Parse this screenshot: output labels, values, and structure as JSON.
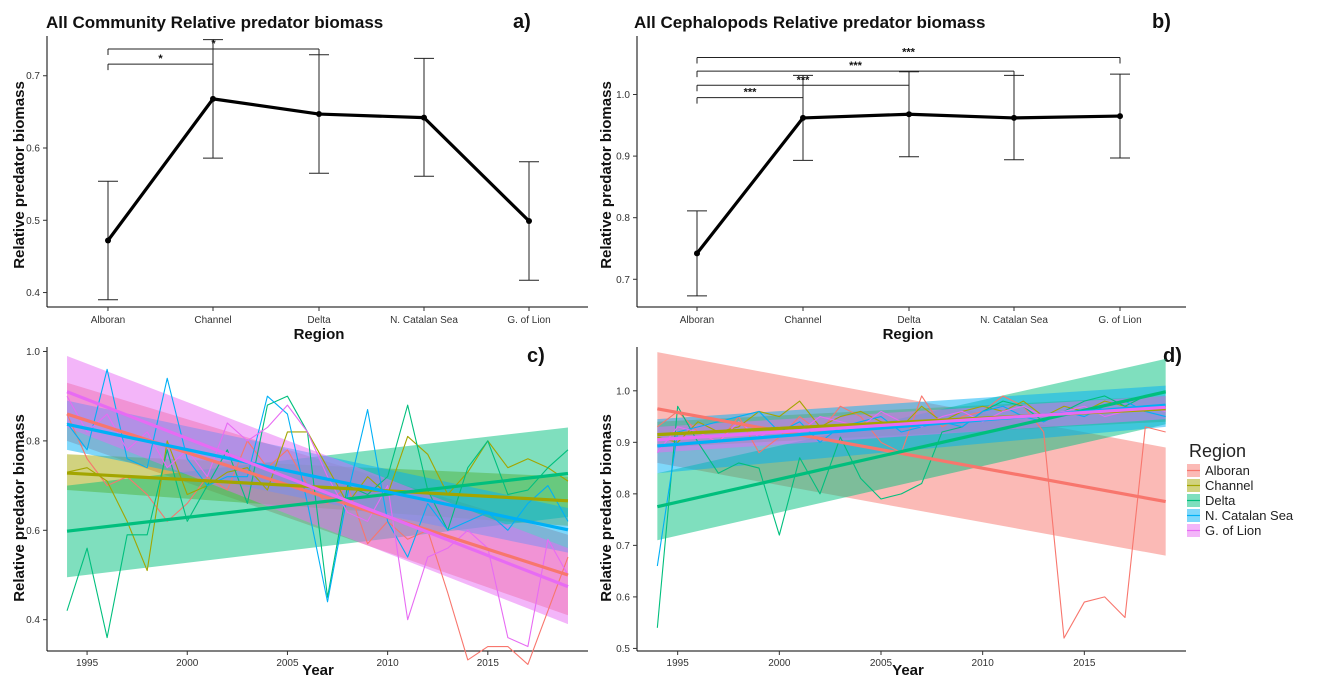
{
  "colors": {
    "Alboran": "#F8766D",
    "Channel": "#A3A500",
    "Delta": "#00BF7D",
    "N. Catalan Sea": "#00B0F6",
    "G. of Lion": "#E76BF3",
    "axis": "#000000",
    "main_line": "#000000"
  },
  "legend": {
    "title": "Region",
    "items": [
      "Alboran",
      "Channel",
      "Delta",
      "N. Catalan Sea",
      "G. of Lion"
    ]
  },
  "chart_data": [
    {
      "id": "a",
      "panel_label": "a)",
      "type": "line",
      "title": "All Community Relative predator biomass",
      "xlabel": "Region",
      "ylabel": "Relative predator biomass",
      "categories": [
        "Alboran",
        "Channel",
        "Delta",
        "N. Catalan Sea",
        "G. of Lion"
      ],
      "values": [
        0.472,
        0.668,
        0.647,
        0.642,
        0.499
      ],
      "lower": [
        0.39,
        0.586,
        0.565,
        0.561,
        0.417
      ],
      "upper": [
        0.554,
        0.75,
        0.729,
        0.724,
        0.581
      ],
      "ylim": [
        0.38,
        0.755
      ],
      "yticks": [
        0.4,
        0.5,
        0.6,
        0.7
      ],
      "ytick_labels": [
        "0.4",
        "0.5",
        "0.6",
        "0.7"
      ],
      "significance": [
        {
          "from": "Alboran",
          "to": "Channel",
          "y": 0.716,
          "label": "*"
        },
        {
          "from": "Alboran",
          "to": "Delta",
          "y": 0.737,
          "label": "*"
        }
      ]
    },
    {
      "id": "b",
      "panel_label": "b)",
      "type": "line",
      "title": "All Cephalopods Relative predator biomass",
      "xlabel": "Region",
      "ylabel": "Relative predator biomass",
      "categories": [
        "Alboran",
        "Channel",
        "Delta",
        "N. Catalan Sea",
        "G. of Lion"
      ],
      "values": [
        0.742,
        0.962,
        0.968,
        0.962,
        0.965
      ],
      "lower": [
        0.673,
        0.893,
        0.899,
        0.894,
        0.897
      ],
      "upper": [
        0.811,
        1.031,
        1.037,
        1.031,
        1.033
      ],
      "ylim": [
        0.655,
        1.095
      ],
      "yticks": [
        0.7,
        0.8,
        0.9,
        1.0
      ],
      "ytick_labels": [
        "0.7",
        "0.8",
        "0.9",
        "1.0"
      ],
      "significance": [
        {
          "from": "Alboran",
          "to": "Channel",
          "y": 0.995,
          "label": "***"
        },
        {
          "from": "Alboran",
          "to": "Delta",
          "y": 1.015,
          "label": "***"
        },
        {
          "from": "Alboran",
          "to": "N. Catalan Sea",
          "y": 1.038,
          "label": "***"
        },
        {
          "from": "Alboran",
          "to": "G. of Lion",
          "y": 1.06,
          "label": "***"
        }
      ]
    },
    {
      "id": "c",
      "panel_label": "c)",
      "type": "line",
      "xlabel": "Year",
      "ylabel": "Relative predator biomass",
      "xlim": [
        1993,
        2020
      ],
      "xticks": [
        1995,
        2000,
        2005,
        2010,
        2015
      ],
      "ylim": [
        0.33,
        1.01
      ],
      "yticks": [
        0.4,
        0.6,
        0.8,
        1.0
      ],
      "ytick_labels": [
        "0.4",
        "0.6",
        "0.8",
        "1.0"
      ],
      "x": [
        1994,
        1995,
        1996,
        1997,
        1998,
        1999,
        2000,
        2001,
        2002,
        2003,
        2004,
        2005,
        2006,
        2007,
        2008,
        2009,
        2010,
        2011,
        2012,
        2013,
        2014,
        2015,
        2016,
        2017,
        2018,
        2019
      ],
      "series": [
        {
          "name": "Alboran",
          "values": [
            0.86,
            0.76,
            0.7,
            0.72,
            0.68,
            0.62,
            0.66,
            0.72,
            0.69,
            0.8,
            0.74,
            0.78,
            0.7,
            0.66,
            0.7,
            0.57,
            0.62,
            0.58,
            0.6,
            0.46,
            0.31,
            0.34,
            0.34,
            0.3,
            0.42,
            0.54
          ],
          "fit_start": 0.86,
          "fit_end": 0.5,
          "ci_start": [
            0.8,
            0.93
          ],
          "ci_end": [
            0.41,
            0.59
          ]
        },
        {
          "name": "Channel",
          "values": [
            0.73,
            0.74,
            0.71,
            0.62,
            0.51,
            0.8,
            0.68,
            0.7,
            0.73,
            0.74,
            0.69,
            0.82,
            0.82,
            0.74,
            0.66,
            0.72,
            0.68,
            0.81,
            0.77,
            0.68,
            0.73,
            0.8,
            0.74,
            0.76,
            0.74,
            0.71
          ],
          "fit_start": 0.728,
          "fit_end": 0.666,
          "ci_start": [
            0.69,
            0.77
          ],
          "ci_end": [
            0.61,
            0.72
          ]
        },
        {
          "name": "Delta",
          "values": [
            0.42,
            0.56,
            0.36,
            0.59,
            0.59,
            0.78,
            0.62,
            0.7,
            0.78,
            0.66,
            0.88,
            0.9,
            0.82,
            0.45,
            0.7,
            0.68,
            0.72,
            0.88,
            0.69,
            0.6,
            0.74,
            0.8,
            0.68,
            0.69,
            0.74,
            0.78
          ],
          "fit_start": 0.598,
          "fit_end": 0.727,
          "ci_start": [
            0.495,
            0.7
          ],
          "ci_end": [
            0.63,
            0.83
          ]
        },
        {
          "name": "N. Catalan Sea",
          "values": [
            0.84,
            0.78,
            0.96,
            0.76,
            0.74,
            0.94,
            0.76,
            0.7,
            0.72,
            0.72,
            0.9,
            0.86,
            0.66,
            0.44,
            0.68,
            0.87,
            0.62,
            0.54,
            0.66,
            0.6,
            0.62,
            0.64,
            0.6,
            0.66,
            0.7,
            0.62
          ],
          "fit_start": 0.837,
          "fit_end": 0.601,
          "ci_start": [
            0.78,
            0.89
          ],
          "ci_end": [
            0.55,
            0.65
          ]
        },
        {
          "name": "G. of Lion",
          "values": [
            0.9,
            0.82,
            0.86,
            0.78,
            0.82,
            0.74,
            0.78,
            0.72,
            0.84,
            0.8,
            0.83,
            0.88,
            0.82,
            0.72,
            0.64,
            0.62,
            0.7,
            0.4,
            0.54,
            0.56,
            0.6,
            0.56,
            0.36,
            0.34,
            0.58,
            0.5
          ],
          "fit_start": 0.91,
          "fit_end": 0.474,
          "ci_start": [
            0.83,
            0.99
          ],
          "ci_end": [
            0.39,
            0.56
          ]
        }
      ]
    },
    {
      "id": "d",
      "panel_label": "d)",
      "type": "line",
      "xlabel": "Year",
      "ylabel": "Relative predator biomass",
      "xlim": [
        1993,
        2020
      ],
      "xticks": [
        1995,
        2000,
        2005,
        2010,
        2015
      ],
      "ylim": [
        0.495,
        1.085
      ],
      "yticks": [
        0.5,
        0.6,
        0.7,
        0.8,
        0.9,
        1.0
      ],
      "ytick_labels": [
        "0.5",
        "0.6",
        "0.7",
        "0.8",
        "0.9",
        "1.0"
      ],
      "x": [
        1994,
        1995,
        1996,
        1997,
        1998,
        1999,
        2000,
        2001,
        2002,
        2003,
        2004,
        2005,
        2006,
        2007,
        2008,
        2009,
        2010,
        2011,
        2012,
        2013,
        2014,
        2015,
        2016,
        2017,
        2018,
        2019
      ],
      "series": [
        {
          "name": "Alboran",
          "values": [
            0.93,
            0.96,
            0.92,
            0.9,
            0.95,
            0.88,
            0.91,
            0.95,
            0.92,
            0.97,
            0.95,
            0.9,
            0.88,
            0.99,
            0.93,
            0.95,
            0.96,
            0.99,
            0.97,
            0.92,
            0.52,
            0.59,
            0.6,
            0.56,
            0.93,
            0.92
          ],
          "fit_start": 0.965,
          "fit_end": 0.785,
          "ci_start": [
            0.86,
            1.075
          ],
          "ci_end": [
            0.68,
            0.89
          ]
        },
        {
          "name": "Channel",
          "values": [
            0.91,
            0.9,
            0.94,
            0.92,
            0.93,
            0.96,
            0.95,
            0.98,
            0.93,
            0.95,
            0.96,
            0.94,
            0.93,
            0.97,
            0.94,
            0.96,
            0.97,
            0.96,
            0.98,
            0.95,
            0.97,
            0.96,
            0.98,
            0.97,
            0.96,
            0.97
          ],
          "fit_start": 0.915,
          "fit_end": 0.965,
          "ci_start": [
            0.89,
            0.94
          ],
          "ci_end": [
            0.94,
            0.99
          ]
        },
        {
          "name": "Delta",
          "values": [
            0.54,
            0.97,
            0.9,
            0.84,
            0.86,
            0.85,
            0.72,
            0.87,
            0.8,
            0.91,
            0.83,
            0.79,
            0.8,
            0.82,
            0.92,
            0.93,
            0.96,
            0.98,
            0.97,
            0.94,
            0.96,
            0.98,
            0.99,
            0.97,
            0.99,
            1.0
          ],
          "fit_start": 0.775,
          "fit_end": 0.998,
          "ci_start": [
            0.71,
            0.84
          ],
          "ci_end": [
            0.935,
            1.062
          ]
        },
        {
          "name": "N. Catalan Sea",
          "values": [
            0.66,
            0.92,
            0.93,
            0.94,
            0.95,
            0.96,
            0.92,
            0.94,
            0.9,
            0.93,
            0.94,
            0.95,
            0.92,
            0.93,
            0.94,
            0.93,
            0.96,
            0.97,
            0.95,
            0.94,
            0.96,
            0.95,
            0.97,
            0.98,
            0.96,
            0.95
          ],
          "fit_start": 0.893,
          "fit_end": 0.972,
          "ci_start": [
            0.84,
            0.945
          ],
          "ci_end": [
            0.93,
            1.01
          ]
        },
        {
          "name": "G. of Lion",
          "values": [
            0.88,
            0.93,
            0.92,
            0.9,
            0.94,
            0.91,
            0.93,
            0.92,
            0.95,
            0.94,
            0.93,
            0.96,
            0.94,
            0.93,
            0.95,
            0.96,
            0.94,
            0.96,
            0.97,
            0.95,
            0.96,
            0.97,
            0.95,
            0.96,
            0.97,
            0.96
          ],
          "fit_start": 0.905,
          "fit_end": 0.968,
          "ci_start": [
            0.88,
            0.93
          ],
          "ci_end": [
            0.945,
            0.99
          ]
        }
      ]
    }
  ]
}
